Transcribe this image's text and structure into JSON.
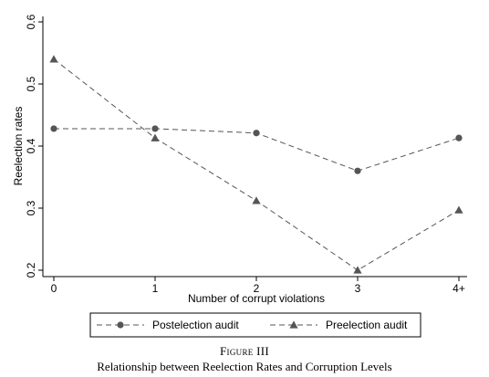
{
  "chart_data": {
    "type": "line",
    "categories": [
      "0",
      "1",
      "2",
      "3",
      "4+"
    ],
    "series": [
      {
        "name": "Postelection audit",
        "values": [
          0.428,
          0.428,
          0.421,
          0.36,
          0.413
        ],
        "marker": "circle"
      },
      {
        "name": "Preelection audit",
        "values": [
          0.54,
          0.413,
          0.312,
          0.2,
          0.297
        ],
        "marker": "triangle"
      }
    ],
    "xlabel": "Number of corrupt violations",
    "ylabel": "Reelection rates",
    "ylim": [
      0.2,
      0.6
    ],
    "yticks": [
      "0.2",
      "0.3",
      "0.4",
      "0.5",
      "0.6"
    ],
    "grid": false,
    "legend_position": "bottom",
    "line_style": "dashed",
    "line_color": "#555555"
  },
  "caption": {
    "label": "Figure III",
    "title": "Relationship between Reelection Rates and Corruption Levels"
  }
}
